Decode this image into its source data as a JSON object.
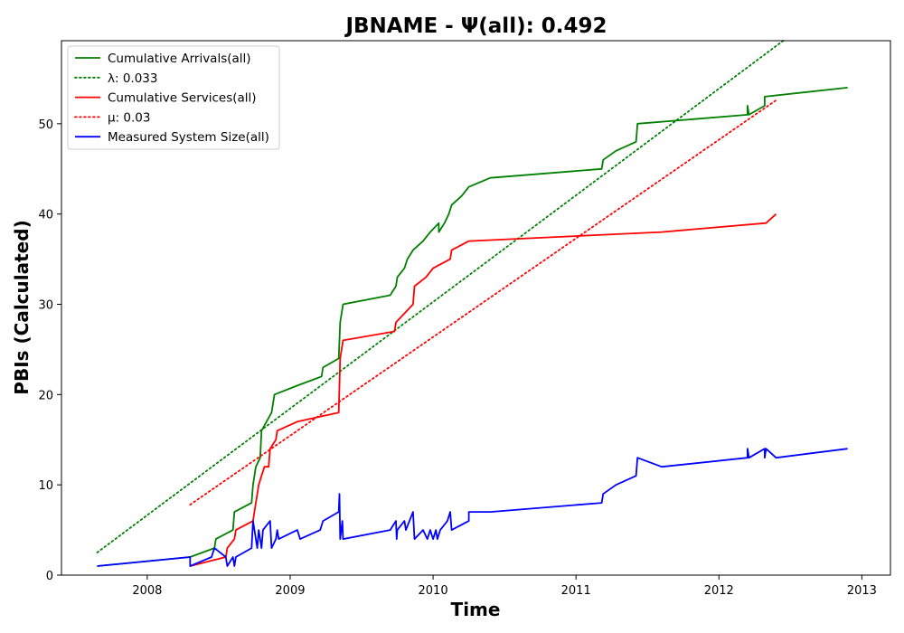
{
  "chart_data": {
    "type": "line",
    "title": "JBNAME -  Ψ(all): 0.492",
    "xlabel": "Time",
    "ylabel": "PBIs (Calculated)",
    "xlim": [
      2007.4,
      2013.2
    ],
    "ylim": [
      0,
      59.2
    ],
    "x_ticks": [
      2008,
      2009,
      2010,
      2011,
      2012,
      2013
    ],
    "y_ticks": [
      0,
      10,
      20,
      30,
      40,
      50
    ],
    "grid": false,
    "legend_position": "top-left",
    "series": [
      {
        "name": "Cumulative Arrivals(all)",
        "color": "#008000",
        "style": "solid",
        "points": [
          [
            2007.65,
            1
          ],
          [
            2008.3,
            2
          ],
          [
            2008.47,
            3
          ],
          [
            2008.48,
            4
          ],
          [
            2008.6,
            5
          ],
          [
            2008.61,
            7
          ],
          [
            2008.73,
            8
          ],
          [
            2008.74,
            10
          ],
          [
            2008.76,
            12
          ],
          [
            2008.79,
            13
          ],
          [
            2008.8,
            16
          ],
          [
            2008.87,
            18
          ],
          [
            2008.89,
            20
          ],
          [
            2009.05,
            21
          ],
          [
            2009.22,
            22
          ],
          [
            2009.23,
            23
          ],
          [
            2009.34,
            24
          ],
          [
            2009.35,
            28
          ],
          [
            2009.37,
            30
          ],
          [
            2009.7,
            31
          ],
          [
            2009.74,
            32
          ],
          [
            2009.75,
            33
          ],
          [
            2009.8,
            34
          ],
          [
            2009.82,
            35
          ],
          [
            2009.86,
            36
          ],
          [
            2009.93,
            37
          ],
          [
            2009.98,
            38
          ],
          [
            2010.04,
            39
          ],
          [
            2010.04,
            38
          ],
          [
            2010.08,
            39
          ],
          [
            2010.11,
            40
          ],
          [
            2010.13,
            41
          ],
          [
            2010.2,
            42
          ],
          [
            2010.25,
            43
          ],
          [
            2010.4,
            44
          ],
          [
            2011.18,
            45
          ],
          [
            2011.19,
            46
          ],
          [
            2011.28,
            47
          ],
          [
            2011.42,
            48
          ],
          [
            2011.43,
            50
          ],
          [
            2012.2,
            51
          ],
          [
            2012.2,
            52
          ],
          [
            2012.21,
            51
          ],
          [
            2012.32,
            52
          ],
          [
            2012.32,
            53
          ],
          [
            2012.9,
            54
          ]
        ]
      },
      {
        "name": "λ: 0.033",
        "color": "#008000",
        "style": "dotted",
        "points": [
          [
            2007.65,
            2.5
          ],
          [
            2012.45,
            59.2
          ]
        ]
      },
      {
        "name": "Cumulative Services(all)",
        "color": "#ff0000",
        "style": "solid",
        "points": [
          [
            2008.3,
            1
          ],
          [
            2008.55,
            2
          ],
          [
            2008.56,
            3
          ],
          [
            2008.61,
            4
          ],
          [
            2008.62,
            5
          ],
          [
            2008.74,
            6
          ],
          [
            2008.75,
            7
          ],
          [
            2008.77,
            9
          ],
          [
            2008.78,
            10
          ],
          [
            2008.8,
            11
          ],
          [
            2008.82,
            12
          ],
          [
            2008.85,
            12
          ],
          [
            2008.86,
            14
          ],
          [
            2008.9,
            15
          ],
          [
            2008.91,
            16
          ],
          [
            2009.05,
            17
          ],
          [
            2009.34,
            18
          ],
          [
            2009.35,
            24
          ],
          [
            2009.36,
            25
          ],
          [
            2009.37,
            26
          ],
          [
            2009.73,
            27
          ],
          [
            2009.74,
            28
          ],
          [
            2009.86,
            30
          ],
          [
            2009.87,
            32
          ],
          [
            2009.95,
            33
          ],
          [
            2010.0,
            34
          ],
          [
            2010.12,
            35
          ],
          [
            2010.13,
            36
          ],
          [
            2010.25,
            37
          ],
          [
            2011.6,
            38
          ],
          [
            2012.33,
            39
          ],
          [
            2012.4,
            40
          ]
        ]
      },
      {
        "name": "μ: 0.03",
        "color": "#ff0000",
        "style": "dotted",
        "points": [
          [
            2008.3,
            7.8
          ],
          [
            2012.4,
            52.6
          ]
        ]
      },
      {
        "name": "Measured System Size(all)",
        "color": "#0000ff",
        "style": "solid",
        "points": [
          [
            2007.65,
            1
          ],
          [
            2008.3,
            2
          ],
          [
            2008.3,
            1
          ],
          [
            2008.45,
            2
          ],
          [
            2008.47,
            3
          ],
          [
            2008.55,
            2
          ],
          [
            2008.56,
            1
          ],
          [
            2008.6,
            2
          ],
          [
            2008.61,
            1
          ],
          [
            2008.62,
            2
          ],
          [
            2008.73,
            3
          ],
          [
            2008.74,
            6
          ],
          [
            2008.77,
            3
          ],
          [
            2008.78,
            5
          ],
          [
            2008.8,
            3
          ],
          [
            2008.81,
            5
          ],
          [
            2008.86,
            6
          ],
          [
            2008.87,
            3
          ],
          [
            2008.9,
            4
          ],
          [
            2008.91,
            5
          ],
          [
            2008.92,
            4
          ],
          [
            2009.05,
            5
          ],
          [
            2009.07,
            4
          ],
          [
            2009.21,
            5
          ],
          [
            2009.23,
            6
          ],
          [
            2009.34,
            7
          ],
          [
            2009.345,
            9
          ],
          [
            2009.35,
            4
          ],
          [
            2009.365,
            6
          ],
          [
            2009.37,
            4
          ],
          [
            2009.7,
            5
          ],
          [
            2009.74,
            6
          ],
          [
            2009.745,
            4
          ],
          [
            2009.75,
            5
          ],
          [
            2009.8,
            6
          ],
          [
            2009.81,
            5
          ],
          [
            2009.86,
            7
          ],
          [
            2009.87,
            4
          ],
          [
            2009.93,
            5
          ],
          [
            2009.96,
            4
          ],
          [
            2009.98,
            5
          ],
          [
            2010.0,
            4
          ],
          [
            2010.02,
            5
          ],
          [
            2010.03,
            4
          ],
          [
            2010.05,
            5
          ],
          [
            2010.1,
            6
          ],
          [
            2010.12,
            7
          ],
          [
            2010.13,
            5
          ],
          [
            2010.25,
            6
          ],
          [
            2010.25,
            7
          ],
          [
            2010.4,
            7
          ],
          [
            2011.18,
            8
          ],
          [
            2011.19,
            9
          ],
          [
            2011.28,
            10
          ],
          [
            2011.42,
            11
          ],
          [
            2011.43,
            13
          ],
          [
            2011.6,
            12
          ],
          [
            2012.2,
            13
          ],
          [
            2012.2,
            14
          ],
          [
            2012.21,
            13
          ],
          [
            2012.32,
            14
          ],
          [
            2012.32,
            13
          ],
          [
            2012.33,
            14
          ],
          [
            2012.4,
            13
          ],
          [
            2012.9,
            14
          ]
        ]
      }
    ],
    "legend": [
      {
        "label": "Cumulative Arrivals(all)",
        "color": "#008000",
        "style": "solid"
      },
      {
        "label": "λ: 0.033",
        "color": "#008000",
        "style": "dotted"
      },
      {
        "label": "Cumulative Services(all)",
        "color": "#ff0000",
        "style": "solid"
      },
      {
        "label": "μ: 0.03",
        "color": "#ff0000",
        "style": "dotted"
      },
      {
        "label": "Measured System Size(all)",
        "color": "#0000ff",
        "style": "solid"
      }
    ]
  }
}
